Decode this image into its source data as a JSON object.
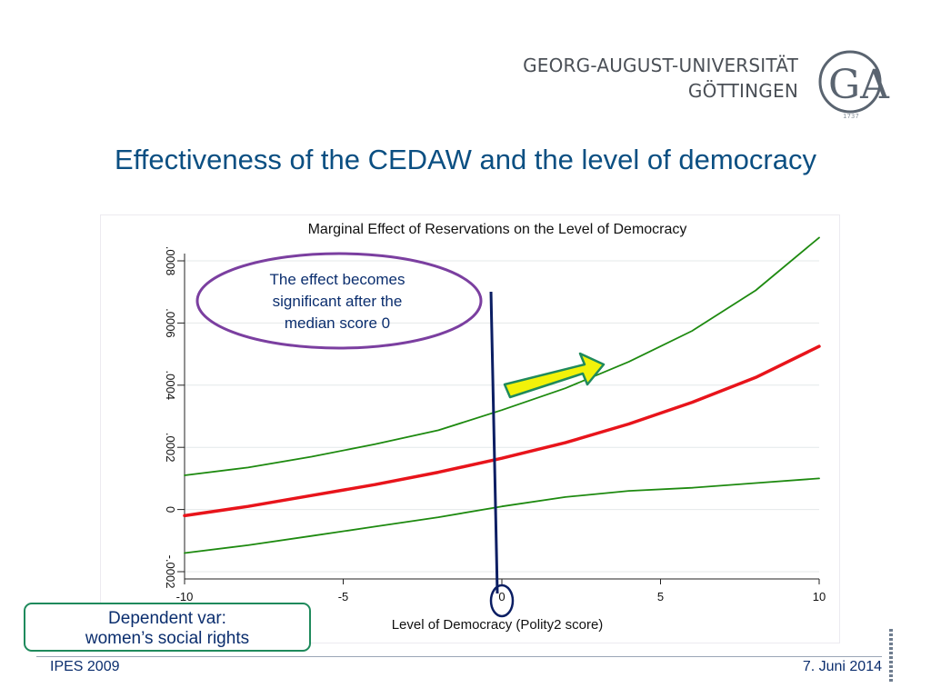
{
  "header": {
    "university_line1": "GEORG-AUGUST-UNIVERSITÄT",
    "university_line2": "GÖTTINGEN",
    "logo_letters": "GA",
    "logo_year": "1737"
  },
  "slide": {
    "title": "Effectiveness of the CEDAW and the level of democracy"
  },
  "annotations": {
    "ellipse_text": [
      "The effect becomes",
      "significant after the",
      "median score 0"
    ],
    "dependent_var_line1": "Dependent var:",
    "dependent_var_line2": "women’s social rights"
  },
  "footer": {
    "left": "IPES 2009",
    "right": "7. Juni 2014"
  },
  "colors": {
    "title": "#0b4f82",
    "estimate_line": "#e8141b",
    "ci_lines": "#1e8a10",
    "ellipse": "#7b3fa0",
    "marker_line": "#0b1e63",
    "arrow_fill": "#f2f20a",
    "arrow_stroke": "#1f8a5c",
    "callout_border": "#1f8a5c"
  },
  "chart_data": {
    "type": "line",
    "title": "Marginal Effect of Reservations on the Level of Democracy",
    "xlabel": "Level of Democracy (Polity2 score)",
    "ylabel": "",
    "xlim": [
      -10,
      10
    ],
    "ylim": [
      -0.0002,
      0.0008
    ],
    "x_ticks": [
      -10,
      -5,
      0,
      5,
      10
    ],
    "x_tick_labels": [
      "-10",
      "-5",
      "0",
      "5",
      "10"
    ],
    "y_ticks": [
      -0.0002,
      0,
      0.0002,
      0.0004,
      0.0006,
      0.0008
    ],
    "y_tick_labels": [
      "-.0002",
      "0",
      ".0002",
      ".0004",
      ".0006",
      ".0008"
    ],
    "grid": true,
    "x": [
      -10,
      -8,
      -6,
      -4,
      -2,
      0,
      2,
      4,
      6,
      8,
      10
    ],
    "series": [
      {
        "values": [
          -2e-05,
          1e-05,
          4.5e-05,
          8e-05,
          0.00012,
          0.000165,
          0.000215,
          0.000275,
          0.000345,
          0.000425,
          0.000525
        ]
      },
      {
        "values": [
          0.00011,
          0.000135,
          0.00017,
          0.00021,
          0.000255,
          0.00032,
          0.00039,
          0.000475,
          0.000575,
          0.000705,
          0.000875
        ]
      },
      {
        "values": [
          -0.00014,
          -0.000115,
          -8.5e-05,
          -5.5e-05,
          -2.5e-05,
          1e-05,
          4e-05,
          6e-05,
          7e-05,
          8.5e-05,
          0.0001
        ]
      }
    ],
    "vertical_marker_x": -0.2
  }
}
